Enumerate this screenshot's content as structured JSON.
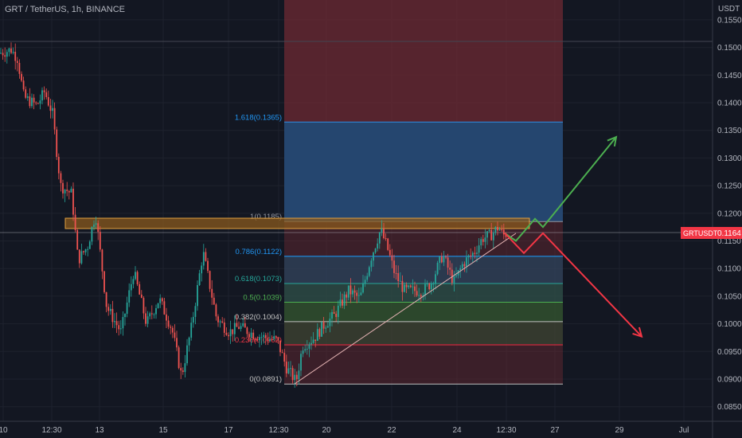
{
  "header": {
    "symbol_title": "GRT / TetherUS, 1h, BINANCE"
  },
  "price_axis": {
    "unit_label": "USDT",
    "ticks": [
      "0.1550",
      "0.1500",
      "0.1450",
      "0.1400",
      "0.1350",
      "0.1300",
      "0.1250",
      "0.1200",
      "0.1150",
      "0.1100",
      "0.1050",
      "0.1000",
      "0.0950",
      "0.0900",
      "0.0850"
    ]
  },
  "time_axis": {
    "ticks": [
      "10",
      "12:30",
      "13",
      "15",
      "17",
      "12:30",
      "20",
      "22",
      "24",
      "12:30",
      "27",
      "29",
      "Jul"
    ]
  },
  "last_price": {
    "symbol": "GRTUSDT",
    "value": "0.1164",
    "color": "#f23645"
  },
  "fib_levels": [
    {
      "label": "1.618(0.1365)",
      "price": 0.1365,
      "color": "#2196f3"
    },
    {
      "label": "1(0.1185)",
      "price": 0.1185,
      "color": "#9598a1"
    },
    {
      "label": "0.786(0.1122)",
      "price": 0.1122,
      "color": "#2196f3"
    },
    {
      "label": "0.618(0.1073)",
      "price": 0.1073,
      "color": "#26a69a"
    },
    {
      "label": "0.5(0.1039)",
      "price": 0.1039,
      "color": "#4caf50"
    },
    {
      "label": "0.382(0.1004)",
      "price": 0.1004,
      "color": "#c0c0c0"
    },
    {
      "label": "0.236(0.0962)",
      "price": 0.0962,
      "color": "#f23645"
    },
    {
      "label": "0(0.0891)",
      "price": 0.0891,
      "color": "#c0c0c0"
    }
  ],
  "colors": {
    "background": "#131722",
    "up": "#26a69a",
    "down": "#ef5350",
    "bull_arrow": "#4caf50",
    "bear_arrow": "#f23645",
    "zone": "#e0a040"
  },
  "chart_data": {
    "type": "candlestick",
    "title": "GRT / TetherUS, 1h, BINANCE",
    "ylabel": "USDT",
    "ylim": [
      0.0825,
      0.1575
    ],
    "price_path": [
      [
        0,
        0.149
      ],
      [
        14,
        0.1496
      ],
      [
        22,
        0.148
      ],
      [
        30,
        0.141
      ],
      [
        46,
        0.1395
      ],
      [
        56,
        0.142
      ],
      [
        66,
        0.138
      ],
      [
        76,
        0.125
      ],
      [
        90,
        0.1235
      ],
      [
        98,
        0.1115
      ],
      [
        110,
        0.114
      ],
      [
        120,
        0.12
      ],
      [
        134,
        0.103
      ],
      [
        152,
        0.0985
      ],
      [
        168,
        0.1095
      ],
      [
        184,
        0.1
      ],
      [
        200,
        0.1045
      ],
      [
        216,
        0.099
      ],
      [
        228,
        0.0905
      ],
      [
        240,
        0.099
      ],
      [
        255,
        0.113
      ],
      [
        262,
        0.108
      ],
      [
        272,
        0.101
      ],
      [
        288,
        0.0985
      ],
      [
        300,
        0.0995
      ],
      [
        320,
        0.098
      ],
      [
        348,
        0.097
      ],
      [
        360,
        0.092
      ],
      [
        372,
        0.0895
      ],
      [
        380,
        0.096
      ],
      [
        395,
        0.0975
      ],
      [
        408,
        0.1
      ],
      [
        420,
        0.1015
      ],
      [
        438,
        0.106
      ],
      [
        452,
        0.1045
      ],
      [
        466,
        0.112
      ],
      [
        478,
        0.117
      ],
      [
        486,
        0.114
      ],
      [
        496,
        0.109
      ],
      [
        508,
        0.106
      ],
      [
        520,
        0.106
      ],
      [
        532,
        0.106
      ],
      [
        542,
        0.1075
      ],
      [
        556,
        0.1125
      ],
      [
        570,
        0.1075
      ],
      [
        582,
        0.111
      ],
      [
        596,
        0.113
      ],
      [
        606,
        0.1155
      ],
      [
        616,
        0.116
      ],
      [
        626,
        0.1175
      ],
      [
        632,
        0.116
      ],
      [
        636,
        0.1164
      ]
    ],
    "projection_bull": [
      [
        634,
        0.1164
      ],
      [
        648,
        0.115
      ],
      [
        672,
        0.119
      ],
      [
        682,
        0.1175
      ],
      [
        774,
        0.1338
      ]
    ],
    "projection_bear": [
      [
        634,
        0.1164
      ],
      [
        658,
        0.1128
      ],
      [
        682,
        0.1164
      ],
      [
        806,
        0.0977
      ]
    ]
  }
}
